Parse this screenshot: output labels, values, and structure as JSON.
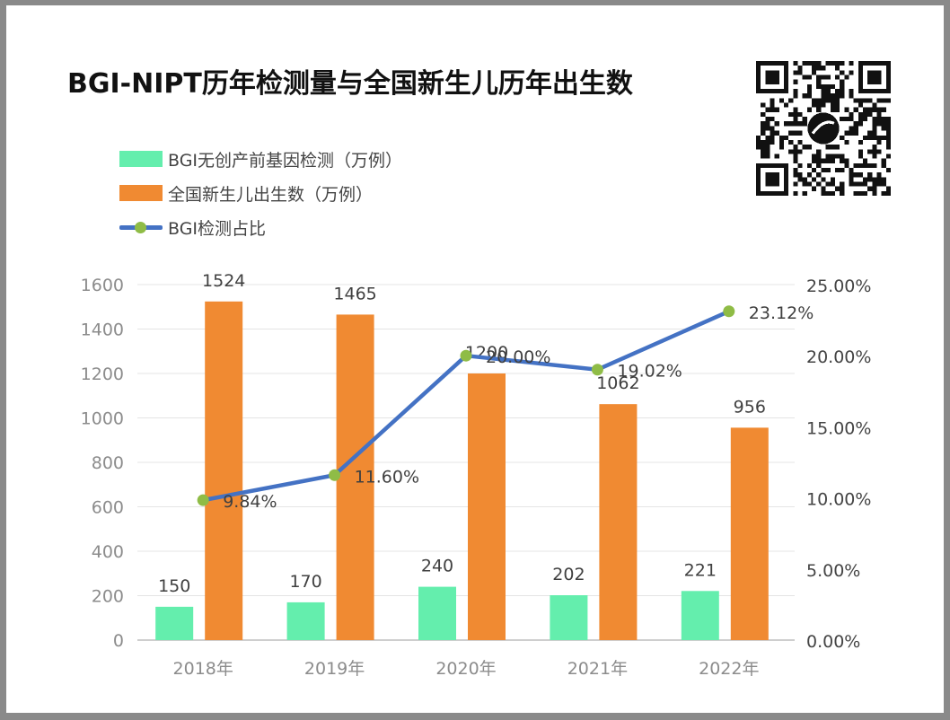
{
  "title": "BGI-NIPT历年检测量与全国新生儿历年出生数",
  "legend": [
    {
      "label": "BGI无创产前基因检测（万例）",
      "color": "#64eead",
      "kind": "bar"
    },
    {
      "label": "全国新生儿出生数（万例）",
      "color": "#f08a32",
      "kind": "bar"
    },
    {
      "label": "BGI检测占比",
      "color": "#4472c4",
      "marker_color": "#8fbc46",
      "kind": "line"
    }
  ],
  "qr_icon": "qr-code-icon",
  "chart_data": {
    "type": "bar",
    "categories": [
      "2018年",
      "2019年",
      "2020年",
      "2021年",
      "2022年"
    ],
    "series": [
      {
        "name": "BGI无创产前基因检测（万例）",
        "values": [
          150,
          170,
          240,
          202,
          221
        ],
        "labels": [
          "150",
          "170",
          "240",
          "202",
          "221"
        ],
        "axis": "left",
        "color": "#64eead"
      },
      {
        "name": "全国新生儿出生数（万例）",
        "values": [
          1524,
          1465,
          1200,
          1062,
          956
        ],
        "labels": [
          "1524",
          "1465",
          "1200",
          "1062",
          "956"
        ],
        "axis": "left",
        "color": "#f08a32"
      },
      {
        "name": "BGI检测占比",
        "type": "line",
        "values": [
          9.84,
          11.6,
          20.0,
          19.02,
          23.12
        ],
        "labels": [
          "9.84%",
          "11.60%",
          "20.00%",
          "19.02%",
          "23.12%"
        ],
        "axis": "right",
        "color": "#4472c4",
        "marker_color": "#8fbc46"
      }
    ],
    "y_left": {
      "min": 0,
      "max": 1600,
      "ticks": [
        "0",
        "200",
        "400",
        "600",
        "800",
        "1000",
        "1200",
        "1400",
        "1600"
      ]
    },
    "y_right": {
      "min": 0,
      "max": 25,
      "ticks": [
        "0.00%",
        "5.00%",
        "10.00%",
        "15.00%",
        "20.00%",
        "25.00%"
      ]
    },
    "grid": true,
    "legend_position": "top-left"
  }
}
